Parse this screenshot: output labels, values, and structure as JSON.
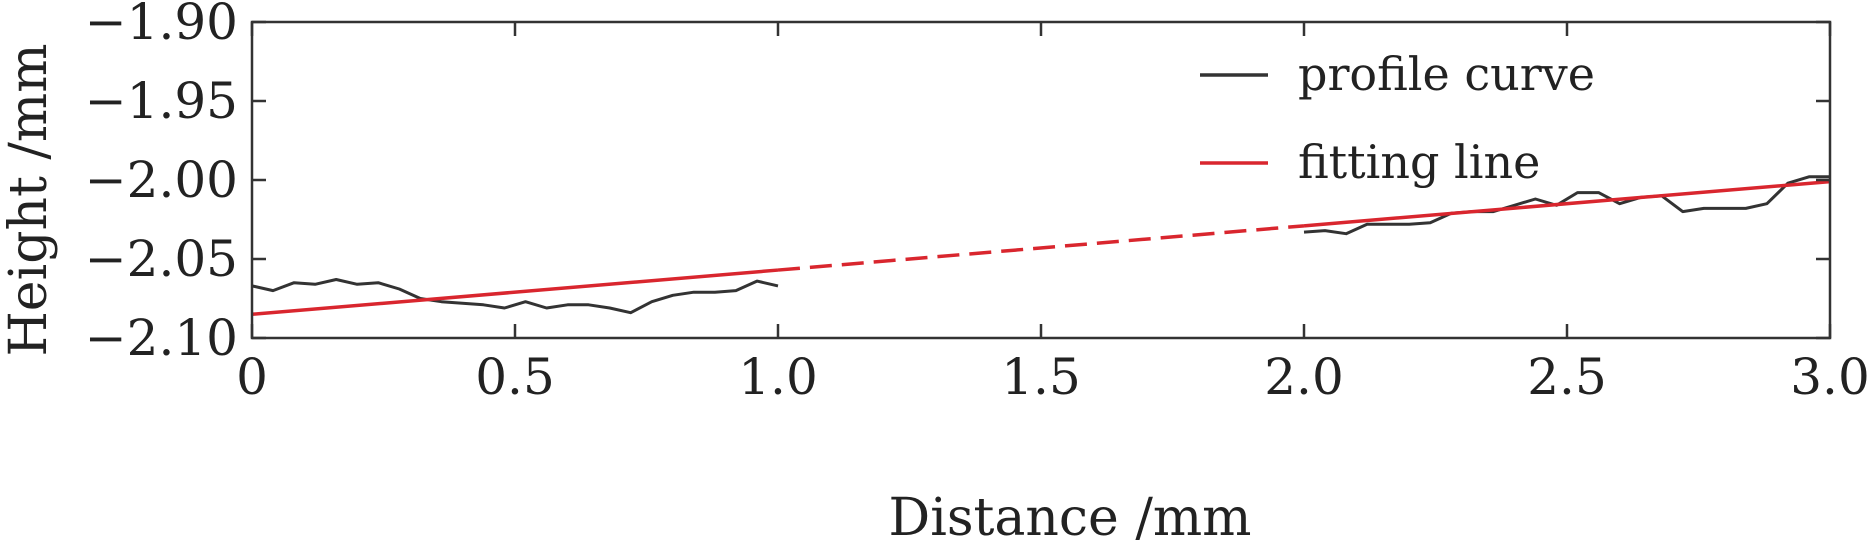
{
  "chart_data": {
    "type": "line",
    "title": "",
    "xlabel": "Distance /mm",
    "ylabel": "Height /mm",
    "xlim": [
      0,
      3.0
    ],
    "ylim": [
      -2.1,
      -1.9
    ],
    "x_ticks": [
      0,
      0.5,
      1.0,
      1.5,
      2.0,
      2.5,
      3.0
    ],
    "x_tick_labels": [
      "0",
      "0.5",
      "1.0",
      "1.5",
      "2.0",
      "2.5",
      "3.0"
    ],
    "y_ticks": [
      -1.9,
      -1.95,
      -2.0,
      -2.05,
      -2.1
    ],
    "y_tick_labels": [
      "−1.90",
      "−1.95",
      "−2.00",
      "−2.05",
      "−2.10"
    ],
    "grid": false,
    "legend_position": "top-right",
    "series": [
      {
        "name": "profile curve",
        "color": "#333333",
        "segments": [
          {
            "x": [
              0,
              0.04,
              0.08,
              0.12,
              0.16,
              0.2,
              0.24,
              0.28,
              0.32,
              0.36,
              0.4,
              0.44,
              0.48,
              0.52,
              0.56,
              0.6,
              0.64,
              0.68,
              0.72,
              0.76,
              0.8,
              0.84,
              0.88,
              0.92,
              0.96,
              1.0
            ],
            "y": [
              -2.067,
              -2.07,
              -2.065,
              -2.066,
              -2.063,
              -2.066,
              -2.065,
              -2.069,
              -2.075,
              -2.077,
              -2.078,
              -2.079,
              -2.081,
              -2.077,
              -2.081,
              -2.079,
              -2.079,
              -2.081,
              -2.084,
              -2.077,
              -2.073,
              -2.071,
              -2.071,
              -2.07,
              -2.064,
              -2.067
            ]
          },
          {
            "x": [
              2.0,
              2.04,
              2.08,
              2.12,
              2.16,
              2.2,
              2.24,
              2.28,
              2.32,
              2.36,
              2.4,
              2.44,
              2.48,
              2.52,
              2.56,
              2.6,
              2.64,
              2.68,
              2.72,
              2.76,
              2.8,
              2.84,
              2.88,
              2.92,
              2.96,
              3.0
            ],
            "y": [
              -2.033,
              -2.032,
              -2.034,
              -2.028,
              -2.028,
              -2.028,
              -2.027,
              -2.021,
              -2.02,
              -2.02,
              -2.016,
              -2.012,
              -2.016,
              -2.008,
              -2.008,
              -2.015,
              -2.011,
              -2.01,
              -2.02,
              -2.018,
              -2.018,
              -2.018,
              -2.015,
              -2.002,
              -1.998,
              -1.998
            ]
          }
        ]
      },
      {
        "name": "fitting line",
        "color": "#d9262e",
        "x": [
          0,
          3.0
        ],
        "y": [
          -2.085,
          -2.001
        ],
        "solid_ranges": [
          [
            0,
            1.0
          ],
          [
            2.0,
            3.0
          ]
        ],
        "dashed_ranges": [
          [
            1.0,
            2.0
          ]
        ]
      }
    ]
  }
}
